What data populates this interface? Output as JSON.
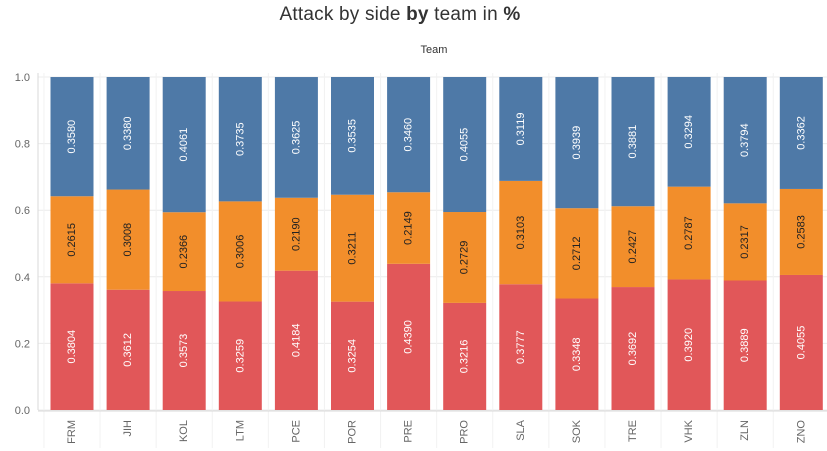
{
  "title": {
    "part1": "Attack by side ",
    "part2": "by",
    "part3": " team in ",
    "part4": "%"
  },
  "chart_data": {
    "type": "bar",
    "stacked": true,
    "column_header": "Team",
    "categories": [
      "FRM",
      "JIH",
      "KOL",
      "LTM",
      "PCE",
      "POR",
      "PRE",
      "PRO",
      "SLA",
      "SOK",
      "TRE",
      "VHK",
      "ZLN",
      "ZNO"
    ],
    "series": [
      {
        "color": "#e15759",
        "values": [
          0.3804,
          0.3612,
          0.3573,
          0.3259,
          0.4184,
          0.3254,
          0.439,
          0.3216,
          0.3777,
          0.3348,
          0.3692,
          0.392,
          0.3889,
          0.4055
        ],
        "labels": [
          "0.3804",
          "0.3612",
          "0.3573",
          "0.3259",
          "0.4184",
          "0.3254",
          "0.4390",
          "0.3216",
          "0.3777",
          "0.3348",
          "0.3692",
          "0.3920",
          "0.3889",
          "0.4055"
        ],
        "label_color": "#ffffff"
      },
      {
        "color": "#f28e2b",
        "values": [
          0.2615,
          0.3008,
          0.2366,
          0.3006,
          0.219,
          0.3211,
          0.2149,
          0.2729,
          0.3103,
          0.2712,
          0.2427,
          0.2787,
          0.2317,
          0.2583
        ],
        "labels": [
          "0.2615",
          "0.3008",
          "0.2366",
          "0.3006",
          "0.2190",
          "0.3211",
          "0.2149",
          "0.2729",
          "0.3103",
          "0.2712",
          "0.2427",
          "0.2787",
          "0.2317",
          "0.2583"
        ],
        "label_color": "#222222"
      },
      {
        "color": "#4e79a7",
        "values": [
          0.358,
          0.338,
          0.4061,
          0.3735,
          0.3625,
          0.3535,
          0.346,
          0.4055,
          0.3119,
          0.3939,
          0.3881,
          0.3294,
          0.3794,
          0.3362
        ],
        "labels": [
          "0.3580",
          "0.3380",
          "0.4061",
          "0.3735",
          "0.3625",
          "0.3535",
          "0.3460",
          "0.4055",
          "0.3119",
          "0.3939",
          "0.3881",
          "0.3294",
          "0.3794",
          "0.3362"
        ],
        "label_color": "#ffffff"
      }
    ],
    "ylim": [
      0,
      1
    ],
    "yticks": [
      "0.0",
      "0.2",
      "0.4",
      "0.6",
      "0.8",
      "1.0"
    ],
    "ytick_values": [
      0,
      0.2,
      0.4,
      0.6,
      0.8,
      1.0
    ],
    "grid": true,
    "legend": "none"
  }
}
